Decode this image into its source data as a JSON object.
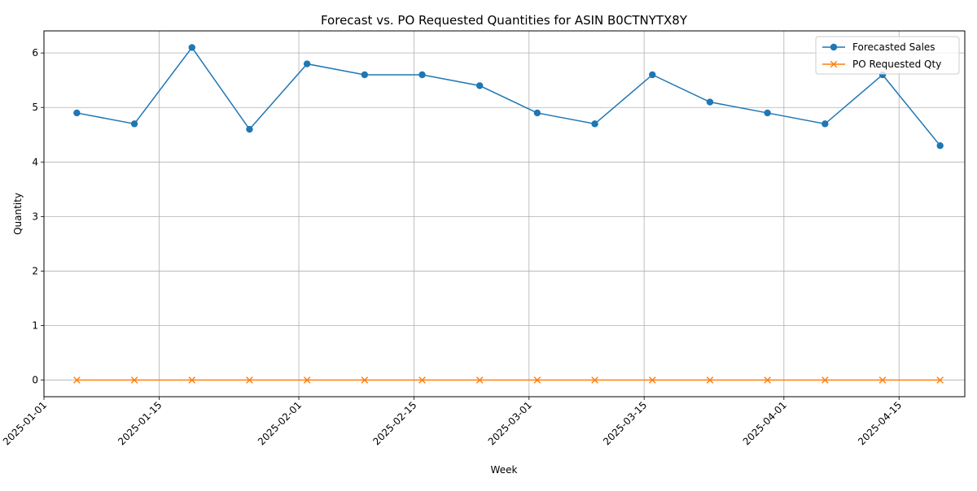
{
  "chart_data": {
    "type": "line",
    "title": "Forecast vs. PO Requested Quantities for ASIN B0CTNYTX8Y",
    "xlabel": "Week",
    "ylabel": "Quantity",
    "x": [
      "2025-01-05",
      "2025-01-12",
      "2025-01-19",
      "2025-01-26",
      "2025-02-02",
      "2025-02-09",
      "2025-02-16",
      "2025-02-23",
      "2025-03-02",
      "2025-03-09",
      "2025-03-16",
      "2025-03-23",
      "2025-03-30",
      "2025-04-06",
      "2025-04-13",
      "2025-04-20"
    ],
    "series": [
      {
        "name": "Forecasted Sales",
        "values": [
          4.9,
          4.7,
          6.1,
          4.6,
          5.8,
          5.6,
          5.6,
          5.4,
          4.9,
          4.7,
          5.6,
          5.1,
          4.9,
          4.7,
          5.6,
          4.3
        ],
        "color": "#1f77b4",
        "marker": "circle"
      },
      {
        "name": "PO Requested Qty",
        "values": [
          0,
          0,
          0,
          0,
          0,
          0,
          0,
          0,
          0,
          0,
          0,
          0,
          0,
          0,
          0,
          0
        ],
        "color": "#ff7f0e",
        "marker": "x"
      }
    ],
    "x_ticks": [
      "2025-01-01",
      "2025-01-15",
      "2025-02-01",
      "2025-02-15",
      "2025-03-01",
      "2025-03-15",
      "2025-04-01",
      "2025-04-15"
    ],
    "y_ticks": [
      0,
      1,
      2,
      3,
      4,
      5,
      6
    ],
    "xlim": [
      "2025-01-01",
      "2025-04-23"
    ],
    "ylim": [
      -0.305,
      6.405
    ],
    "grid": true,
    "legend_position": "top-right"
  }
}
